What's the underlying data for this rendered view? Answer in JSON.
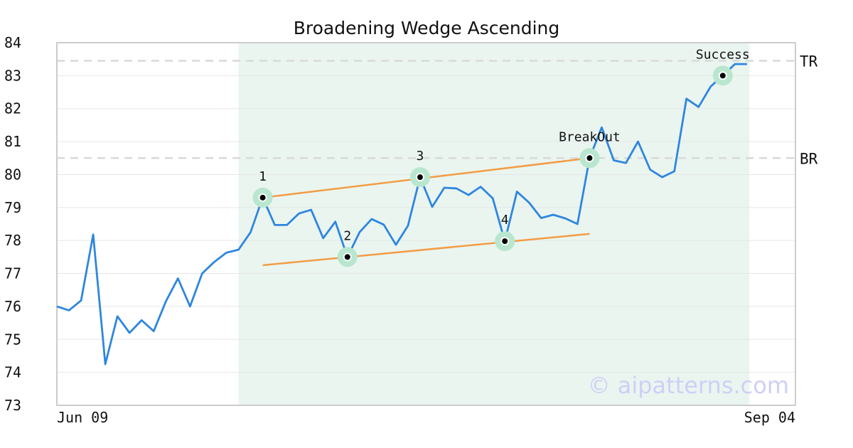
{
  "chart_data": {
    "type": "line",
    "title": "Broadening Wedge Ascending",
    "xlabel": "",
    "ylabel": "",
    "ylim": [
      73,
      84
    ],
    "yticks": [
      73,
      74,
      75,
      76,
      77,
      78,
      79,
      80,
      81,
      82,
      83,
      84
    ],
    "x_range": [
      0,
      61
    ],
    "x_tick_labels": [
      {
        "x": 0,
        "label": "Jun 09"
      },
      {
        "x": 61,
        "label": "Sep 04"
      }
    ],
    "grid": true,
    "series": [
      {
        "color": "#2e86de",
        "values": [
          76.0,
          75.88,
          76.18,
          78.18,
          74.25,
          75.7,
          75.2,
          75.58,
          75.25,
          76.15,
          76.85,
          76.0,
          77.0,
          77.35,
          77.63,
          77.72,
          78.25,
          79.3,
          78.47,
          78.47,
          78.82,
          78.93,
          78.07,
          78.57,
          77.5,
          78.25,
          78.65,
          78.48,
          77.87,
          78.45,
          79.92,
          79.02,
          79.6,
          79.58,
          79.38,
          79.63,
          79.28,
          77.98,
          79.48,
          79.15,
          78.68,
          78.78,
          78.67,
          78.5,
          80.5,
          81.43,
          80.43,
          80.35,
          81.0,
          80.15,
          79.92,
          80.1,
          82.3,
          82.05,
          82.67,
          83.0,
          83.35,
          83.35
        ]
      }
    ],
    "highlight_region": {
      "x_start": 15,
      "x_end": 57.2,
      "color": "#eaf5f0"
    },
    "trendlines": [
      {
        "color": "#f39c44",
        "points": [
          [
            17,
            79.3
          ],
          [
            44,
            80.5
          ]
        ]
      },
      {
        "color": "#f39c44",
        "points": [
          [
            17,
            77.25
          ],
          [
            44,
            78.2
          ]
        ]
      }
    ],
    "annotations": [
      {
        "x": 17,
        "y": 79.3,
        "label": "1"
      },
      {
        "x": 24,
        "y": 77.5,
        "label": "2"
      },
      {
        "x": 30,
        "y": 79.92,
        "label": "3"
      },
      {
        "x": 37,
        "y": 77.98,
        "label": "4"
      },
      {
        "x": 44,
        "y": 80.5,
        "label": "BreakOut"
      },
      {
        "x": 55,
        "y": 83.0,
        "label": "Success"
      }
    ],
    "levels": [
      {
        "y": 80.5,
        "label": "BR"
      },
      {
        "y": 83.45,
        "label": "TR"
      }
    ],
    "watermark": "© aipatterns.com",
    "colors": {
      "line": "#2e86de",
      "trendline": "#f39c44",
      "marker_halo": "#b8e6cf",
      "marker_dot": "#000000",
      "grid": "#e6e6e6",
      "level_line": "#d9d9d9",
      "frame": "#cccccc"
    }
  }
}
